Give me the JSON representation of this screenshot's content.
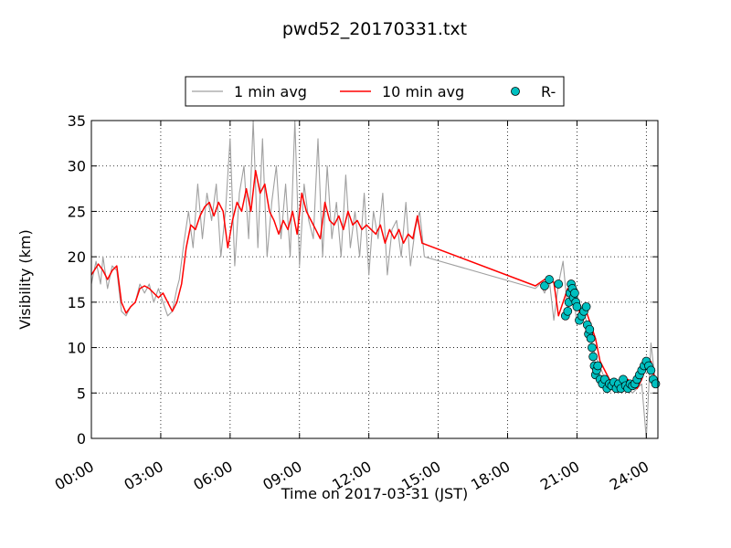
{
  "chart_data": {
    "type": "line",
    "title": "pwd52_20170331.txt",
    "xlabel": "Time on 2017-03-31 (JST)",
    "ylabel": "Visibility (km)",
    "xlim_hours": [
      0,
      24.5
    ],
    "ylim": [
      0,
      35
    ],
    "x_ticks_hours": [
      0,
      3,
      6,
      9,
      12,
      15,
      18,
      21,
      24
    ],
    "x_tick_labels": [
      "00:00",
      "03:00",
      "06:00",
      "09:00",
      "12:00",
      "15:00",
      "18:00",
      "21:00",
      "24:00"
    ],
    "y_ticks": [
      0,
      5,
      10,
      15,
      20,
      25,
      30,
      35
    ],
    "y_tick_labels": [
      "0",
      "5",
      "10",
      "15",
      "20",
      "25",
      "30",
      "35"
    ],
    "grid": "dotted",
    "legend_placement": "top-center, above plot",
    "series": [
      {
        "name": "1 min avg",
        "style": "line",
        "color": "#a0a0a0",
        "x_hours": [
          0.0,
          0.2,
          0.4,
          0.5,
          0.7,
          0.9,
          1.1,
          1.3,
          1.5,
          1.7,
          1.9,
          2.1,
          2.3,
          2.5,
          2.7,
          2.9,
          3.1,
          3.3,
          3.5,
          3.7,
          3.8,
          4.0,
          4.2,
          4.4,
          4.6,
          4.8,
          5.0,
          5.2,
          5.4,
          5.6,
          5.8,
          6.0,
          6.2,
          6.4,
          6.6,
          6.8,
          7.0,
          7.2,
          7.4,
          7.6,
          7.8,
          8.0,
          8.2,
          8.4,
          8.6,
          8.8,
          9.0,
          9.2,
          9.4,
          9.6,
          9.8,
          10.0,
          10.2,
          10.4,
          10.6,
          10.8,
          11.0,
          11.2,
          11.4,
          11.6,
          11.8,
          12.0,
          12.2,
          12.4,
          12.6,
          12.8,
          13.0,
          13.2,
          13.4,
          13.6,
          13.8,
          14.0,
          14.2,
          14.4,
          19.2,
          19.4,
          19.6,
          19.8,
          20.0,
          20.2,
          20.4,
          20.6,
          20.8,
          21.0,
          21.2,
          21.4,
          21.6,
          21.8,
          22.0,
          22.2,
          22.4,
          22.6,
          22.8,
          23.0,
          23.2,
          23.4,
          23.6,
          23.8,
          24.0,
          24.2,
          24.4
        ],
        "y": [
          17,
          19.5,
          17,
          20,
          16.5,
          19,
          18.5,
          14,
          13.5,
          14.5,
          15,
          17,
          16,
          17,
          15,
          16.5,
          15,
          13.5,
          14,
          16.5,
          17.5,
          21.5,
          25,
          21,
          28,
          22,
          27,
          24,
          28,
          20,
          25,
          33,
          19,
          27,
          30,
          22,
          35,
          21,
          33,
          20,
          26,
          30,
          22,
          28,
          20,
          35,
          19,
          28,
          24,
          22,
          33,
          20,
          30,
          22,
          26,
          20,
          29,
          21,
          25,
          20,
          27,
          18,
          25,
          22,
          27,
          18,
          23,
          24,
          20,
          26,
          19,
          23,
          25,
          20,
          16.5,
          17,
          16,
          17.5,
          13,
          17,
          19.5,
          14,
          17,
          12.5,
          14.5,
          13,
          11,
          9,
          8,
          6.5,
          6,
          5.5,
          6,
          6.5,
          5.5,
          5,
          5.5,
          6,
          0,
          10.5,
          6
        ]
      },
      {
        "name": "10 min avg",
        "style": "line",
        "color": "#ff0000",
        "x_hours": [
          0.0,
          0.3,
          0.5,
          0.7,
          0.9,
          1.1,
          1.3,
          1.5,
          1.7,
          1.9,
          2.1,
          2.3,
          2.5,
          2.7,
          2.9,
          3.1,
          3.3,
          3.5,
          3.7,
          3.9,
          4.1,
          4.3,
          4.5,
          4.7,
          4.9,
          5.1,
          5.3,
          5.5,
          5.7,
          5.9,
          6.1,
          6.3,
          6.5,
          6.7,
          6.9,
          7.1,
          7.3,
          7.5,
          7.7,
          7.9,
          8.1,
          8.3,
          8.5,
          8.7,
          8.9,
          9.1,
          9.3,
          9.5,
          9.7,
          9.9,
          10.1,
          10.3,
          10.5,
          10.7,
          10.9,
          11.1,
          11.3,
          11.5,
          11.7,
          11.9,
          12.1,
          12.3,
          12.5,
          12.7,
          12.9,
          13.1,
          13.3,
          13.5,
          13.7,
          13.9,
          14.1,
          14.3,
          19.2,
          19.6,
          20.0,
          20.2,
          20.4,
          20.6,
          20.8,
          21.0,
          21.2,
          21.4,
          21.6,
          21.8,
          22.0,
          22.2,
          22.4,
          22.6,
          22.8,
          23.0,
          23.2,
          23.4,
          23.6,
          23.8,
          24.0,
          24.2,
          24.4
        ],
        "y": [
          18,
          19.2,
          18.5,
          17.5,
          18.5,
          19,
          15,
          13.8,
          14.5,
          15,
          16.5,
          16.8,
          16.5,
          16,
          15.5,
          16,
          15,
          14,
          15,
          17,
          21,
          23.5,
          23,
          24.5,
          25.5,
          26,
          24.5,
          26,
          25,
          21,
          24,
          26,
          25,
          27.5,
          25,
          29.5,
          27,
          28,
          25,
          24,
          22.5,
          24,
          23,
          25,
          22.5,
          27,
          25,
          24,
          23,
          22,
          26,
          24,
          23.5,
          24.5,
          23,
          25,
          23.5,
          24,
          23,
          23.5,
          23,
          22.5,
          23.5,
          21.5,
          23,
          22,
          23,
          21.5,
          22.5,
          22,
          24.5,
          21.5,
          16.8,
          17.5,
          17.2,
          13.5,
          15,
          16.5,
          16,
          14.5,
          13.5,
          14,
          12.5,
          11,
          8.5,
          7.5,
          6.5,
          6.2,
          6,
          5.8,
          6.5,
          6,
          5.5,
          6.5,
          8,
          8.5,
          6
        ]
      },
      {
        "name": "R-",
        "style": "scatter",
        "color": "#00c0c0",
        "x_hours": [
          19.6,
          19.8,
          20.2,
          20.5,
          20.6,
          20.65,
          20.7,
          20.75,
          20.8,
          20.85,
          20.9,
          20.95,
          21.0,
          21.1,
          21.2,
          21.3,
          21.4,
          21.45,
          21.5,
          21.55,
          21.6,
          21.65,
          21.7,
          21.75,
          21.8,
          21.85,
          21.9,
          22.0,
          22.1,
          22.2,
          22.3,
          22.4,
          22.5,
          22.6,
          22.7,
          22.8,
          22.9,
          23.0,
          23.1,
          23.2,
          23.3,
          23.4,
          23.5,
          23.6,
          23.7,
          23.8,
          23.9,
          24.0,
          24.1,
          24.2,
          24.3,
          24.4
        ],
        "y": [
          16.8,
          17.5,
          17,
          13.5,
          14,
          15,
          16,
          17,
          16.5,
          15.5,
          16,
          15,
          14.5,
          13,
          13.5,
          14,
          14.5,
          12.5,
          11.5,
          12,
          11,
          10,
          9,
          8,
          7,
          7.5,
          8,
          6.5,
          6,
          6.5,
          5.5,
          6,
          5.8,
          6.2,
          5.5,
          6,
          5.5,
          6.5,
          5.8,
          5.5,
          6,
          5.8,
          6,
          6.5,
          7,
          7.5,
          8,
          8.5,
          8,
          7.5,
          6.5,
          6
        ]
      }
    ]
  }
}
